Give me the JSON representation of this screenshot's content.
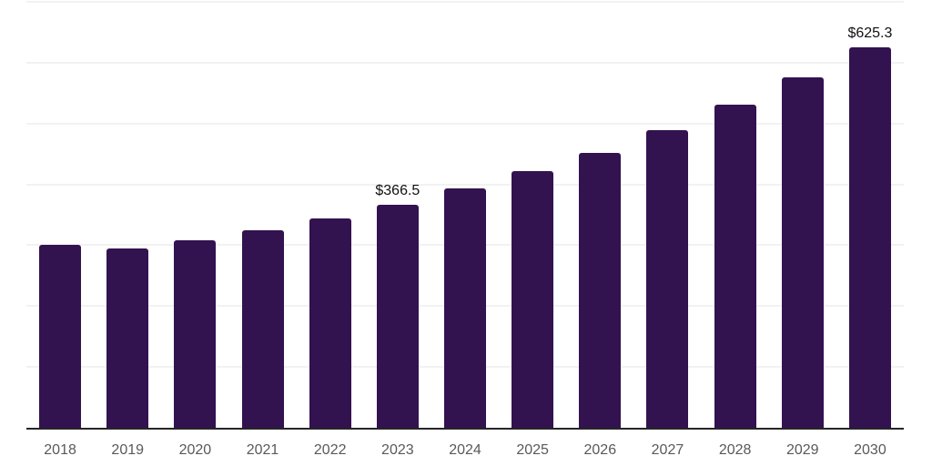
{
  "chart_data": {
    "type": "bar",
    "title": "",
    "xlabel": "",
    "ylabel": "",
    "categories": [
      "2018",
      "2019",
      "2020",
      "2021",
      "2022",
      "2023",
      "2024",
      "2025",
      "2026",
      "2027",
      "2028",
      "2029",
      "2030"
    ],
    "values": [
      300.5,
      295.0,
      308.0,
      324.5,
      344.0,
      366.5,
      393.5,
      421.5,
      451.5,
      489.0,
      531.0,
      576.0,
      625.3
    ],
    "value_labels": [
      "",
      "",
      "",
      "",
      "",
      "$366.5",
      "",
      "",
      "",
      "",
      "",
      "",
      "$625.3"
    ],
    "labeled_points": [
      {
        "category": "2023",
        "label": "$366.5"
      },
      {
        "category": "2030",
        "label": "$625.3"
      }
    ],
    "ylim": [
      0,
      700
    ],
    "grid_step": 100,
    "grid": "horizontal-only",
    "legend_position": "none",
    "y_axis_tick_labels": "none",
    "colors": {
      "bar": "#331250",
      "gridline": "#f2f2f2",
      "axis_line": "#262626",
      "tick_label": "#595959",
      "value_label": "#111111",
      "background": "#ffffff"
    }
  }
}
